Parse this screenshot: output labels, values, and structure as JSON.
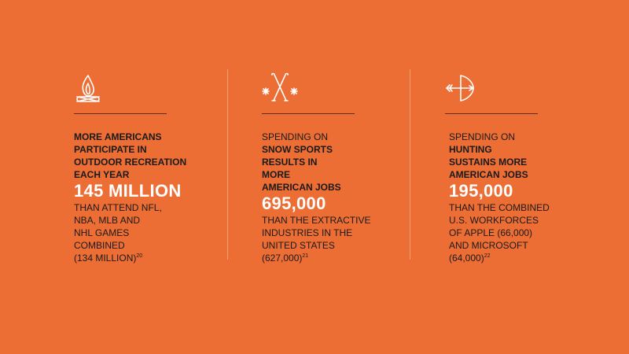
{
  "colors": {
    "background": "#ec6e35",
    "headline": "#ffffff",
    "text": "#1a1a1a"
  },
  "columns": [
    {
      "icon": "campfire-icon",
      "heading": [
        {
          "text": "MORE AMERICANS",
          "bold": true
        },
        {
          "text": "PARTICIPATE IN",
          "bold": true
        },
        {
          "text": "OUTDOOR RECREATION",
          "bold": true
        },
        {
          "text": "EACH YEAR",
          "bold": true
        }
      ],
      "figure": "145 MILLION",
      "body": [
        "THAN ATTEND NFL,",
        "NBA, MLB AND",
        "NHL GAMES",
        "COMBINED"
      ],
      "footnote_text": "(134 MILLION)",
      "footnote_ref": "20"
    },
    {
      "icon": "crossed-skis-snowflake-icon",
      "heading": [
        {
          "text": "SPENDING ON",
          "bold": false
        },
        {
          "text": "SNOW SPORTS",
          "bold": true
        },
        {
          "text": "RESULTS IN",
          "bold": true
        },
        {
          "text": "MORE",
          "bold": true
        },
        {
          "text": "AMERICAN JOBS",
          "bold": true
        }
      ],
      "figure": "695,000",
      "body": [
        "THAN THE EXTRACTIVE",
        "INDUSTRIES IN THE",
        "UNITED STATES"
      ],
      "footnote_text": "(627,000)",
      "footnote_ref": "21"
    },
    {
      "icon": "bow-and-arrow-icon",
      "heading": [
        {
          "text": "SPENDING ON",
          "bold": false
        },
        {
          "text": "HUNTING",
          "bold": true
        },
        {
          "text": "SUSTAINS MORE",
          "bold": true
        },
        {
          "text": "AMERICAN JOBS",
          "bold": true
        }
      ],
      "figure": "195,000",
      "body": [
        "THAN THE COMBINED",
        "U.S. WORKFORCES",
        "OF APPLE (66,000)",
        "AND MICROSOFT"
      ],
      "footnote_text": "(64,000)",
      "footnote_ref": "22"
    }
  ]
}
